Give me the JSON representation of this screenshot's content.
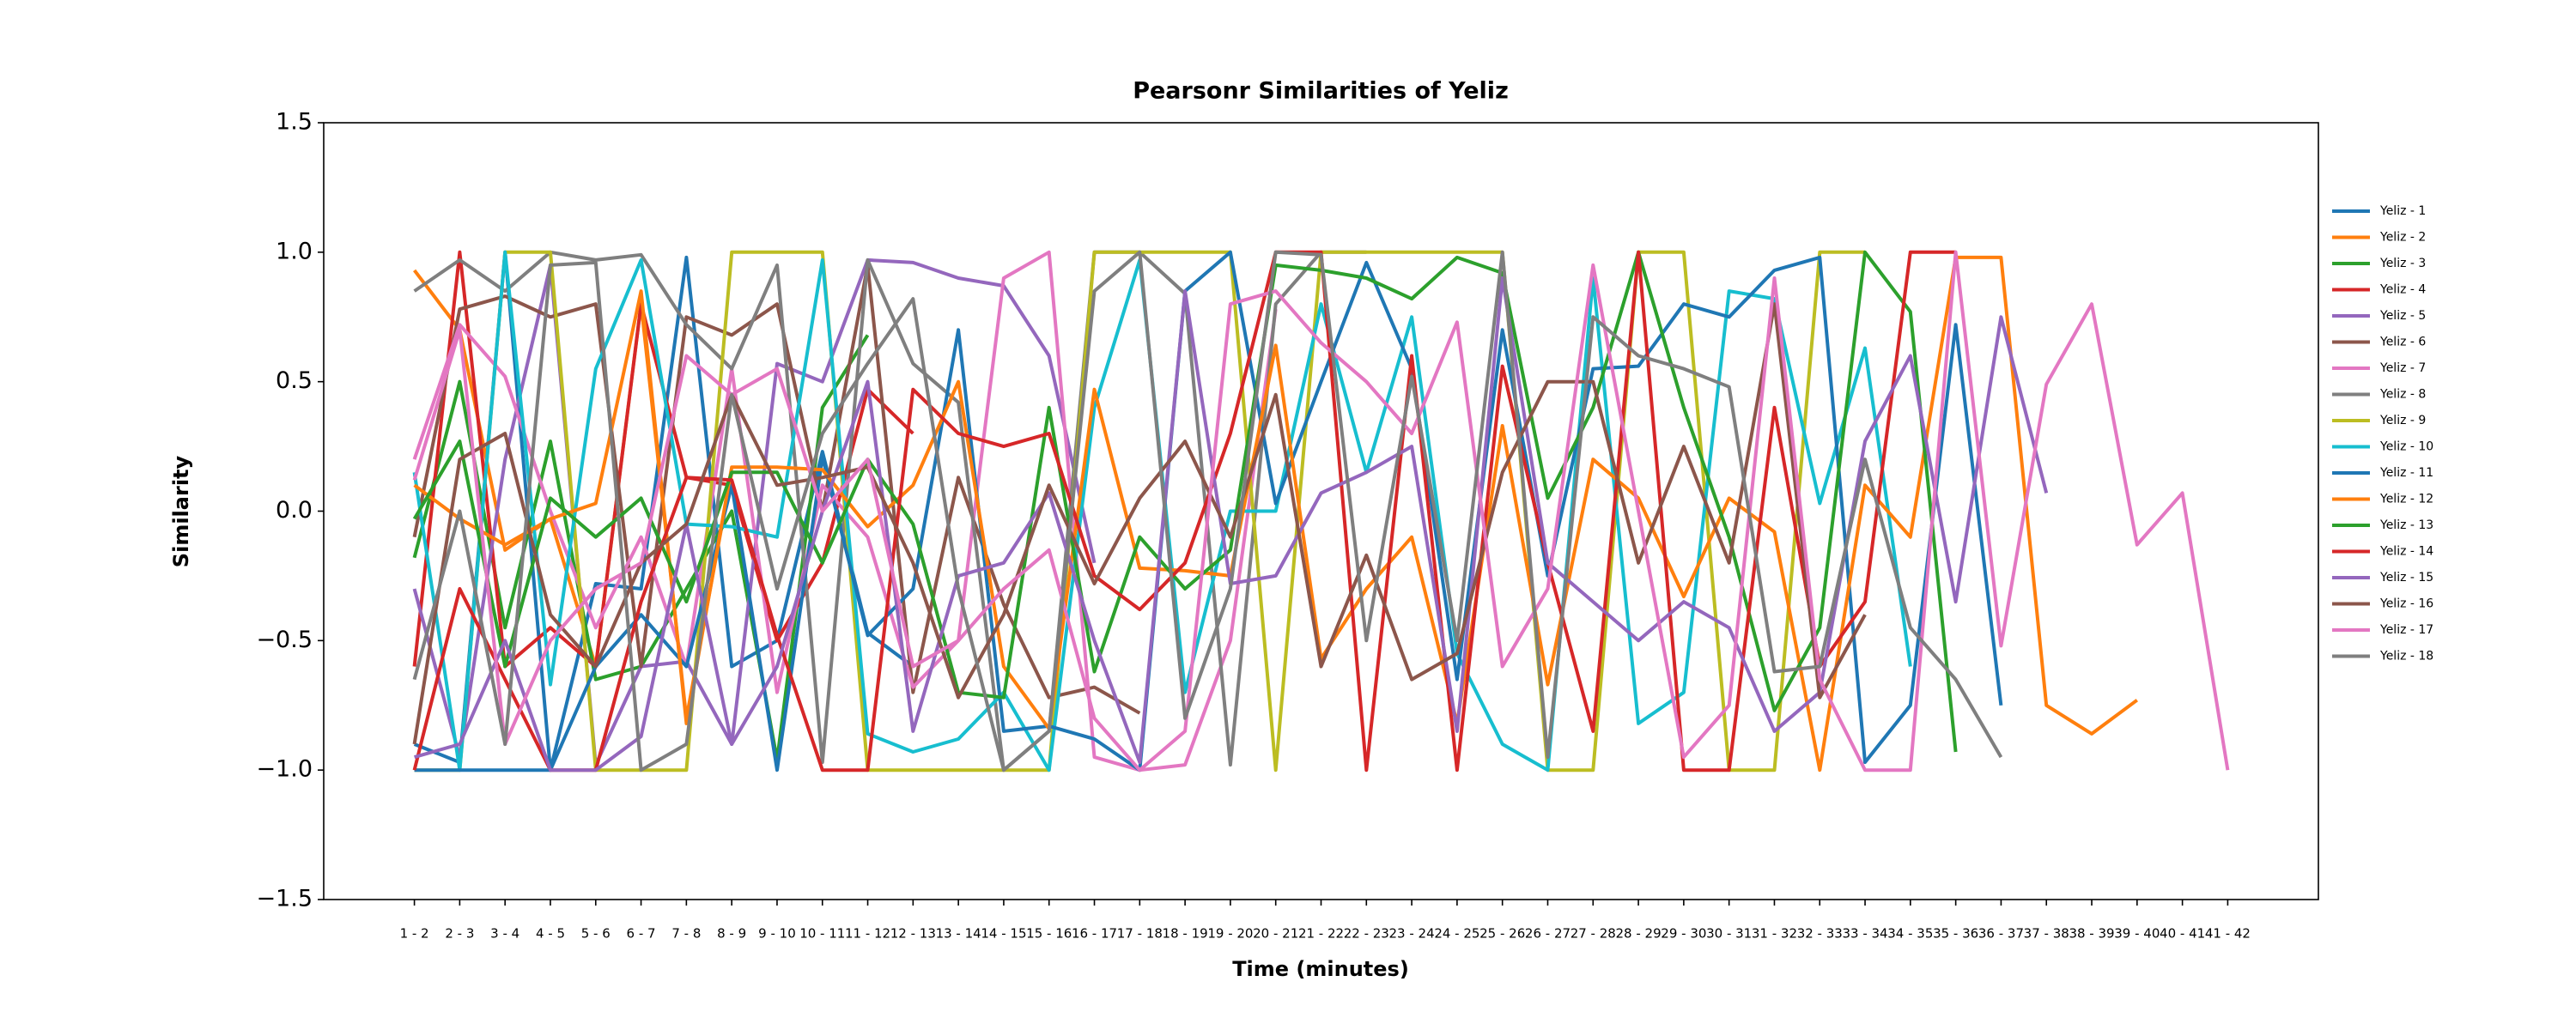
{
  "chart_data": {
    "type": "line",
    "title": "Pearsonr Similarities of Yeliz",
    "x_label": "Time (minutes)",
    "y_label": "Similarity",
    "legend": "right",
    "categories": [
      "1 - 2",
      "2 - 3",
      "3 - 4",
      "4 - 5",
      "5 - 6",
      "6 - 7",
      "7 - 8",
      "8 - 9",
      "9 - 10",
      "10 - 11",
      "11 - 12",
      "12 - 13",
      "13 - 14",
      "14 - 15",
      "15 - 16",
      "16 - 17",
      "17 - 18",
      "18 - 19",
      "19 - 20",
      "20 - 21",
      "21 - 22",
      "22 - 23",
      "23 - 24",
      "24 - 25",
      "25 - 26",
      "26 - 27",
      "27 - 28",
      "28 - 29",
      "29 - 30",
      "30 - 31",
      "31 - 32",
      "32 - 33",
      "33 - 34",
      "34 - 35",
      "35 - 36",
      "36 - 37",
      "37 - 38",
      "38 - 39",
      "39 - 40",
      "40 - 41",
      "41 - 42"
    ],
    "ylim": [
      -1.5,
      1.5
    ],
    "yticks": [
      {
        "value": -1.5,
        "label": "−1.5"
      },
      {
        "value": -1,
        "label": "−1.0"
      },
      {
        "value": -0.5,
        "label": "−0.5"
      },
      {
        "value": 0,
        "label": "0.0"
      },
      0.5,
      {
        "value": 1,
        "label": "1.0"
      },
      1.5
    ],
    "series": [
      {
        "name": "Yeliz - 1",
        "color": "#1f77b4",
        "values": [
          -0.9,
          -0.97,
          1.0,
          -1.0,
          -0.28,
          -0.3,
          0.98,
          -0.6,
          -0.5,
          0.23,
          -0.47,
          -0.6,
          null,
          null,
          null,
          null,
          null,
          null,
          null,
          null,
          null,
          null,
          null,
          null,
          null,
          null,
          null,
          null,
          null,
          null,
          null,
          null,
          null,
          null,
          null,
          null,
          null,
          null,
          null,
          null,
          null
        ]
      },
      {
        "name": "Yeliz - 2",
        "color": "#ff7f0e",
        "values": [
          0.93,
          0.7,
          -0.15,
          -0.03,
          -0.6,
          0.8,
          -0.8,
          0.15,
          null,
          null,
          null,
          null,
          null,
          null,
          null,
          null,
          null,
          null,
          null,
          null,
          null,
          null,
          null,
          null,
          null,
          null,
          null,
          null,
          null,
          null,
          null,
          null,
          null,
          null,
          null,
          null,
          null,
          null,
          null,
          null,
          null
        ]
      },
      {
        "name": "Yeliz - 3",
        "color": "#2ca02c",
        "values": [
          -0.18,
          0.5,
          -0.45,
          0.27,
          -0.65,
          -0.6,
          -0.3,
          0.0,
          -0.96,
          0.4,
          0.68,
          null,
          null,
          null,
          null,
          null,
          null,
          null,
          null,
          null,
          null,
          null,
          null,
          null,
          null,
          null,
          null,
          null,
          null,
          null,
          null,
          null,
          null,
          null,
          null,
          null,
          null,
          null,
          null,
          null,
          null
        ]
      },
      {
        "name": "Yeliz - 4",
        "color": "#d62728",
        "values": [
          -0.6,
          1.0,
          -0.6,
          -0.45,
          -0.6,
          0.8,
          0.13,
          0.1,
          -0.5,
          -0.2,
          0.47,
          0.3,
          null,
          null,
          null,
          null,
          null,
          null,
          null,
          null,
          null,
          null,
          null,
          null,
          null,
          null,
          null,
          null,
          null,
          null,
          null,
          null,
          null,
          null,
          null,
          null,
          null,
          null,
          null,
          null,
          null
        ]
      },
      {
        "name": "Yeliz - 5",
        "color": "#9467bd",
        "values": [
          -0.3,
          -0.95,
          0.2,
          0.95,
          -0.98,
          -0.6,
          -0.58,
          -0.9,
          0.57,
          0.5,
          0.97,
          0.96,
          0.9,
          0.87,
          0.6,
          -0.2,
          null,
          null,
          null,
          null,
          null,
          null,
          null,
          null,
          null,
          null,
          null,
          null,
          null,
          null,
          null,
          null,
          null,
          null,
          null,
          null,
          null,
          null,
          null,
          null,
          null
        ]
      },
      {
        "name": "Yeliz - 6",
        "color": "#8c564b",
        "values": [
          -0.1,
          0.78,
          0.83,
          0.75,
          0.8,
          -0.6,
          0.75,
          0.68,
          0.8,
          0.0,
          0.95,
          -0.7,
          0.13,
          -0.36,
          -0.72,
          -0.68,
          -0.78,
          null,
          null,
          null,
          null,
          null,
          null,
          null,
          null,
          null,
          null,
          null,
          null,
          null,
          null,
          null,
          null,
          null,
          null,
          null,
          null,
          null,
          null,
          null,
          null
        ]
      },
      {
        "name": "Yeliz - 7",
        "color": "#e377c2",
        "values": [
          0.2,
          0.72,
          0.52,
          0.0,
          -0.45,
          -0.1,
          -0.6,
          0.55,
          -0.7,
          0.1,
          -0.1,
          -0.68,
          -0.5,
          0.9,
          1.0,
          -0.95,
          -1.0,
          -0.98,
          -0.5,
          0.78,
          null,
          null,
          null,
          null,
          null,
          null,
          null,
          null,
          null,
          null,
          null,
          null,
          null,
          null,
          null,
          null,
          null,
          null,
          null,
          null,
          null
        ]
      },
      {
        "name": "Yeliz - 8",
        "color": "#7f7f7f",
        "values": [
          0.85,
          0.97,
          0.85,
          1.0,
          0.97,
          0.99,
          0.72,
          0.55,
          0.95,
          -0.97,
          0.97,
          0.57,
          0.42,
          -1.0,
          -0.85,
          1.0,
          1.0,
          0.84,
          -0.98,
          0.8,
          1.0,
          1.0,
          null,
          null,
          null,
          null,
          null,
          null,
          null,
          null,
          null,
          null,
          null,
          null,
          null,
          null,
          null,
          null,
          null,
          null,
          null
        ]
      },
      {
        "name": "Yeliz - 9",
        "color": "#bcbd22",
        "values": [
          -1.0,
          -1.0,
          1.0,
          1.0,
          -1.0,
          -1.0,
          -1.0,
          1.0,
          1.0,
          1.0,
          -1.0,
          -1.0,
          -1.0,
          -1.0,
          -1.0,
          1.0,
          1.0,
          1.0,
          1.0,
          -1.0,
          1.0,
          1.0,
          1.0,
          1.0,
          1.0,
          -1.0,
          -1.0,
          1.0,
          1.0,
          -1.0,
          -1.0,
          1.0,
          1.0,
          null,
          null,
          null,
          null,
          null,
          null,
          null,
          null
        ]
      },
      {
        "name": "Yeliz - 10",
        "color": "#17becf",
        "values": [
          0.15,
          -1.0,
          1.0,
          -0.67,
          0.55,
          0.97,
          -0.05,
          -0.06,
          -0.1,
          0.97,
          -0.86,
          -0.93,
          -0.88,
          -0.7,
          -1.0,
          0.4,
          0.97,
          -0.7,
          0.0,
          0.0,
          0.8,
          0.15,
          0.75,
          -0.55,
          -0.9,
          -1.0,
          0.9,
          -0.82,
          -0.7,
          0.85,
          0.82,
          0.03,
          0.63,
          -0.6,
          null,
          null,
          null,
          null,
          null,
          null,
          null
        ]
      },
      {
        "name": "Yeliz - 11",
        "color": "#1f77b4",
        "values": [
          -1.0,
          -1.0,
          -1.0,
          -1.0,
          -0.6,
          -0.4,
          -0.6,
          0.1,
          -1.0,
          0.21,
          -0.48,
          -0.3,
          0.7,
          -0.85,
          -0.83,
          -0.88,
          -1.0,
          0.85,
          1.0,
          0.03,
          0.5,
          0.96,
          0.55,
          -0.65,
          0.7,
          -0.25,
          0.55,
          0.56,
          0.8,
          0.75,
          0.93,
          0.98,
          -0.97,
          -0.75,
          0.72,
          -0.75,
          null,
          null,
          null,
          null,
          null
        ]
      },
      {
        "name": "Yeliz - 12",
        "color": "#ff7f0e",
        "values": [
          0.1,
          -0.03,
          -0.13,
          -0.03,
          0.03,
          0.85,
          -0.82,
          0.17,
          0.17,
          0.16,
          -0.06,
          0.1,
          0.5,
          -0.6,
          -0.84,
          0.47,
          -0.22,
          -0.23,
          -0.25,
          0.64,
          -0.57,
          -0.3,
          -0.1,
          -0.82,
          0.33,
          -0.67,
          0.2,
          0.05,
          -0.33,
          0.05,
          -0.08,
          -1.0,
          0.1,
          -0.1,
          0.98,
          0.98,
          -0.75,
          -0.86,
          -0.73,
          null,
          null
        ]
      },
      {
        "name": "Yeliz - 13",
        "color": "#2ca02c",
        "values": [
          -0.03,
          0.27,
          -0.6,
          0.05,
          -0.1,
          0.05,
          -0.35,
          0.15,
          0.15,
          -0.2,
          0.2,
          -0.05,
          -0.7,
          -0.72,
          0.4,
          -0.62,
          -0.1,
          -0.3,
          -0.15,
          0.95,
          0.93,
          0.9,
          0.82,
          0.98,
          0.92,
          0.05,
          0.4,
          1.0,
          0.4,
          -0.1,
          -0.77,
          -0.45,
          1.0,
          0.77,
          -0.93,
          null,
          null,
          null,
          null,
          null,
          null
        ]
      },
      {
        "name": "Yeliz - 14",
        "color": "#d62728",
        "values": [
          -1.0,
          -0.3,
          -0.65,
          -1.0,
          -1.0,
          -0.35,
          0.13,
          0.12,
          -0.48,
          -1.0,
          -1.0,
          0.47,
          0.3,
          0.25,
          0.3,
          -0.25,
          -0.38,
          -0.2,
          0.3,
          1.0,
          1.0,
          -1.0,
          0.6,
          -1.0,
          0.56,
          -0.2,
          -0.85,
          1.0,
          -1.0,
          -1.0,
          0.4,
          -0.6,
          -0.35,
          1.0,
          1.0,
          null,
          null,
          null,
          null,
          null,
          null
        ]
      },
      {
        "name": "Yeliz - 15",
        "color": "#9467bd",
        "values": [
          -0.95,
          -0.9,
          -0.5,
          -1.0,
          -1.0,
          -0.87,
          -0.05,
          -0.9,
          -0.6,
          0.0,
          0.5,
          -0.85,
          -0.25,
          -0.2,
          0.07,
          -0.5,
          -0.97,
          0.85,
          -0.28,
          -0.25,
          0.07,
          0.15,
          0.25,
          -0.85,
          0.9,
          -0.2,
          -0.35,
          -0.5,
          -0.35,
          -0.45,
          -0.85,
          -0.7,
          0.27,
          0.6,
          -0.35,
          0.75,
          0.07,
          null,
          null,
          null,
          null
        ]
      },
      {
        "name": "Yeliz - 16",
        "color": "#8c564b",
        "values": [
          -0.9,
          0.2,
          0.3,
          -0.4,
          -0.6,
          -0.2,
          -0.05,
          0.45,
          0.1,
          0.13,
          0.17,
          -0.2,
          -0.72,
          -0.4,
          0.1,
          -0.28,
          0.05,
          0.27,
          -0.1,
          0.45,
          -0.6,
          -0.17,
          -0.65,
          -0.55,
          0.15,
          0.5,
          0.5,
          -0.2,
          0.25,
          -0.2,
          0.8,
          -0.72,
          -0.4,
          null,
          null,
          null,
          null,
          null,
          null,
          null,
          null
        ]
      },
      {
        "name": "Yeliz - 17",
        "color": "#e377c2",
        "values": [
          0.12,
          0.7,
          -0.9,
          -0.5,
          -0.3,
          -0.2,
          0.6,
          0.45,
          0.55,
          0.0,
          0.2,
          -0.6,
          -0.5,
          -0.3,
          -0.15,
          -0.8,
          -1.0,
          -0.85,
          0.8,
          0.85,
          0.65,
          0.5,
          0.3,
          0.73,
          -0.6,
          -0.3,
          0.95,
          0.0,
          -0.95,
          -0.75,
          0.9,
          -0.65,
          -1.0,
          -1.0,
          1.0,
          -0.52,
          0.49,
          0.8,
          -0.13,
          0.07,
          -1.0
        ]
      },
      {
        "name": "Yeliz - 18",
        "color": "#7f7f7f",
        "values": [
          -0.65,
          0.0,
          -0.9,
          0.95,
          0.96,
          -1.0,
          -0.9,
          0.45,
          -0.3,
          0.3,
          0.57,
          0.82,
          -0.3,
          -1.0,
          -0.85,
          0.85,
          1.0,
          -0.8,
          -0.3,
          1.0,
          0.99,
          -0.5,
          0.52,
          -0.5,
          1.0,
          -0.95,
          0.75,
          0.6,
          0.55,
          0.48,
          -0.62,
          -0.6,
          0.2,
          -0.45,
          -0.65,
          -0.95,
          null,
          null,
          null,
          null,
          null
        ]
      }
    ]
  }
}
